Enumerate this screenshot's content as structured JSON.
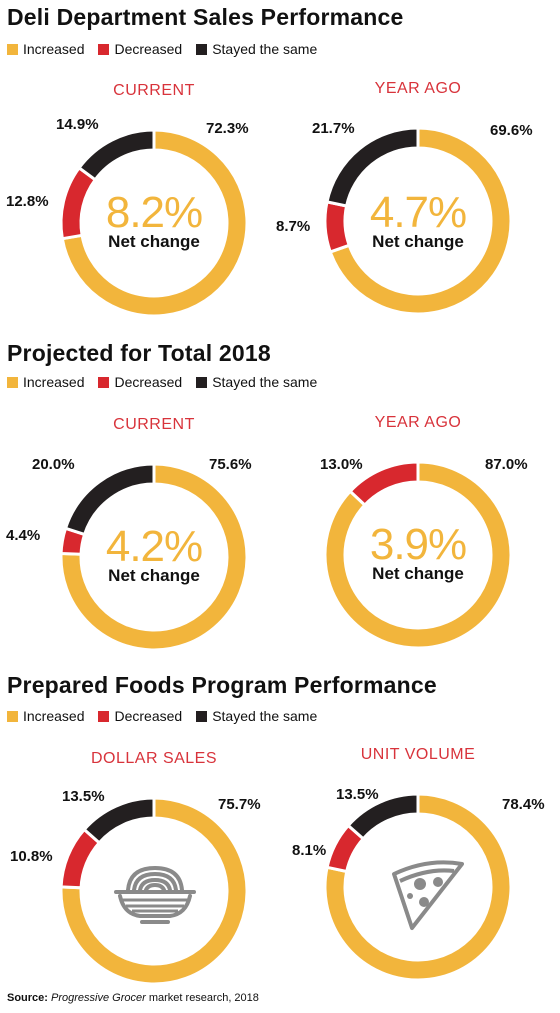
{
  "colors": {
    "increased": "#f2b53c",
    "decreased": "#d8282e",
    "same": "#231f20",
    "title_red": "#d8333b"
  },
  "legend": {
    "increased": "Increased",
    "decreased": "Decreased",
    "same": "Stayed the same"
  },
  "sections": [
    {
      "title": "Deli Department Sales Performance"
    },
    {
      "title": "Projected for Total 2018"
    },
    {
      "title": "Prepared Foods Program Performance"
    }
  ],
  "source": {
    "label": "Source:",
    "publication": "Progressive Grocer",
    "rest": " market research, 2018"
  },
  "chart_data": [
    {
      "type": "pie",
      "section": "Deli Department Sales Performance",
      "title": "CURRENT",
      "categories": [
        "Increased",
        "Decreased",
        "Stayed the same"
      ],
      "values": [
        72.3,
        12.8,
        14.9
      ],
      "labels": [
        "72.3%",
        "12.8%",
        "14.9%"
      ],
      "center_value": "8.2%",
      "center_label": "Net change"
    },
    {
      "type": "pie",
      "section": "Deli Department Sales Performance",
      "title": "YEAR AGO",
      "categories": [
        "Increased",
        "Decreased",
        "Stayed the same"
      ],
      "values": [
        69.6,
        8.7,
        21.7
      ],
      "labels": [
        "69.6%",
        "8.7%",
        "21.7%"
      ],
      "center_value": "4.7%",
      "center_label": "Net change"
    },
    {
      "type": "pie",
      "section": "Projected for Total 2018",
      "title": "CURRENT",
      "categories": [
        "Increased",
        "Decreased",
        "Stayed the same"
      ],
      "values": [
        75.6,
        4.4,
        20.0
      ],
      "labels": [
        "75.6%",
        "4.4%",
        "20.0%"
      ],
      "center_value": "4.2%",
      "center_label": "Net change"
    },
    {
      "type": "pie",
      "section": "Projected for Total 2018",
      "title": "YEAR AGO",
      "categories": [
        "Increased",
        "Decreased"
      ],
      "values": [
        87.0,
        13.0
      ],
      "labels": [
        "87.0%",
        "13.0%"
      ],
      "center_value": "3.9%",
      "center_label": "Net change"
    },
    {
      "type": "pie",
      "section": "Prepared Foods Program Performance",
      "title": "DOLLAR SALES",
      "categories": [
        "Increased",
        "Decreased",
        "Stayed the same"
      ],
      "values": [
        75.7,
        10.8,
        13.5
      ],
      "labels": [
        "75.7%",
        "10.8%",
        "13.5%"
      ],
      "center_icon": "noodle-bowl-icon"
    },
    {
      "type": "pie",
      "section": "Prepared Foods Program Performance",
      "title": "UNIT VOLUME",
      "categories": [
        "Increased",
        "Decreased",
        "Stayed the same"
      ],
      "values": [
        78.4,
        8.1,
        13.5
      ],
      "labels": [
        "78.4%",
        "8.1%",
        "13.5%"
      ],
      "center_icon": "pizza-slice-icon"
    }
  ]
}
